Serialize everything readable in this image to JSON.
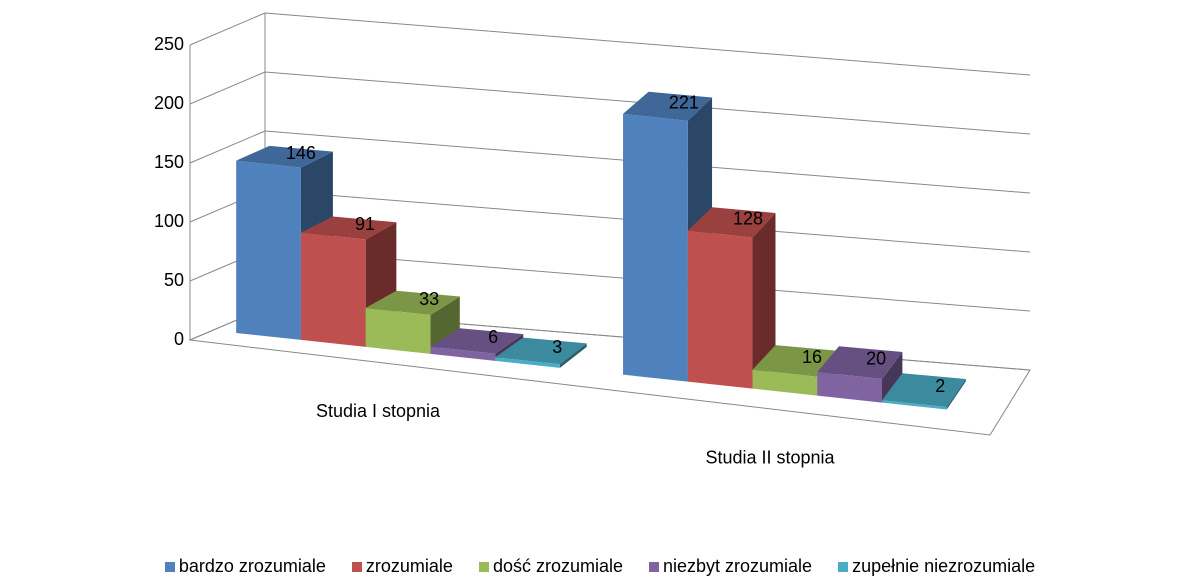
{
  "chart_data": {
    "type": "bar3d",
    "categories": [
      "Studia I stopnia",
      "Studia II stopnia"
    ],
    "series": [
      {
        "name": "bardzo zrozumiale",
        "color": "#4f81bd",
        "values": [
          146,
          221
        ]
      },
      {
        "name": "zrozumiale",
        "color": "#c0504d",
        "values": [
          91,
          128
        ]
      },
      {
        "name": "dość zrozumiale",
        "color": "#9bbb59",
        "values": [
          33,
          16
        ]
      },
      {
        "name": "niezbyt zrozumiale",
        "color": "#8064a2",
        "values": [
          6,
          20
        ]
      },
      {
        "name": "zupełnie niezrozumiale",
        "color": "#4bacc6",
        "values": [
          3,
          2
        ]
      }
    ],
    "ylim": [
      0,
      250
    ],
    "yticks": [
      0,
      50,
      100,
      150,
      200,
      250
    ],
    "grid": true,
    "legend": "bottom"
  }
}
